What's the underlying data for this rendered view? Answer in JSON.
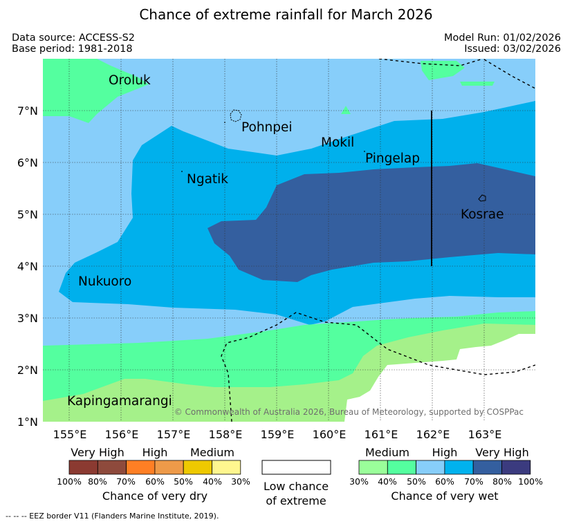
{
  "title": "Chance of extreme rainfall for March 2026",
  "meta": {
    "data_source": "Data source: ACCESS-S2",
    "base_period": "Base period: 1981-2018",
    "model_run": "Model Run: 01/02/2026",
    "issued": "Issued: 03/02/2026"
  },
  "map": {
    "places": [
      "Oroluk",
      "Pohnpei",
      "Mokil",
      "Pingelap",
      "Ngatik",
      "Kosrae",
      "Nukuoro",
      "Kapingamarangi"
    ],
    "lat_ticks": [
      "7°N",
      "6°N",
      "5°N",
      "4°N",
      "3°N",
      "2°N",
      "1°N"
    ],
    "lon_ticks": [
      "155°E",
      "156°E",
      "157°E",
      "158°E",
      "159°E",
      "160°E",
      "161°E",
      "162°E",
      "163°E"
    ],
    "copyright": "© Commonwealth of Australia 2026, Bureau of Meteorology, supported by COSPPac",
    "colors": {
      "wet_medium_30": "#a5f18a",
      "wet_medium_40": "#54ff9f",
      "wet_high_50": "#87cefa",
      "wet_high_60": "#00b0ec",
      "wet_veryhigh_70": "#345f9f",
      "wet_veryhigh_80": "#3b3b7f",
      "low": "#ffffff"
    }
  },
  "legend": {
    "dry": {
      "groups": [
        "Very High",
        "High",
        "Medium"
      ],
      "pcts": [
        "100%",
        "80%",
        "70%",
        "60%",
        "50%",
        "40%",
        "30%"
      ],
      "colors": [
        "#8b3a31",
        "#8e4a3c",
        "#ff7f24",
        "#ee9a49",
        "#eec900",
        "#fff68f"
      ],
      "caption": "Chance of very dry"
    },
    "low": {
      "line1": "Low chance",
      "line2": "of extreme"
    },
    "wet": {
      "groups": [
        "Medium",
        "High",
        "Very High"
      ],
      "pcts": [
        "30%",
        "40%",
        "50%",
        "60%",
        "70%",
        "80%",
        "100%"
      ],
      "colors": [
        "#9aff9a",
        "#54ff9f",
        "#87cefa",
        "#00b2ee",
        "#345f9f",
        "#3b3b7f"
      ],
      "caption": "Chance of very wet"
    }
  },
  "footnote": "--  --  -- EEZ border V11 (Flanders Marine Institute, 2019)."
}
